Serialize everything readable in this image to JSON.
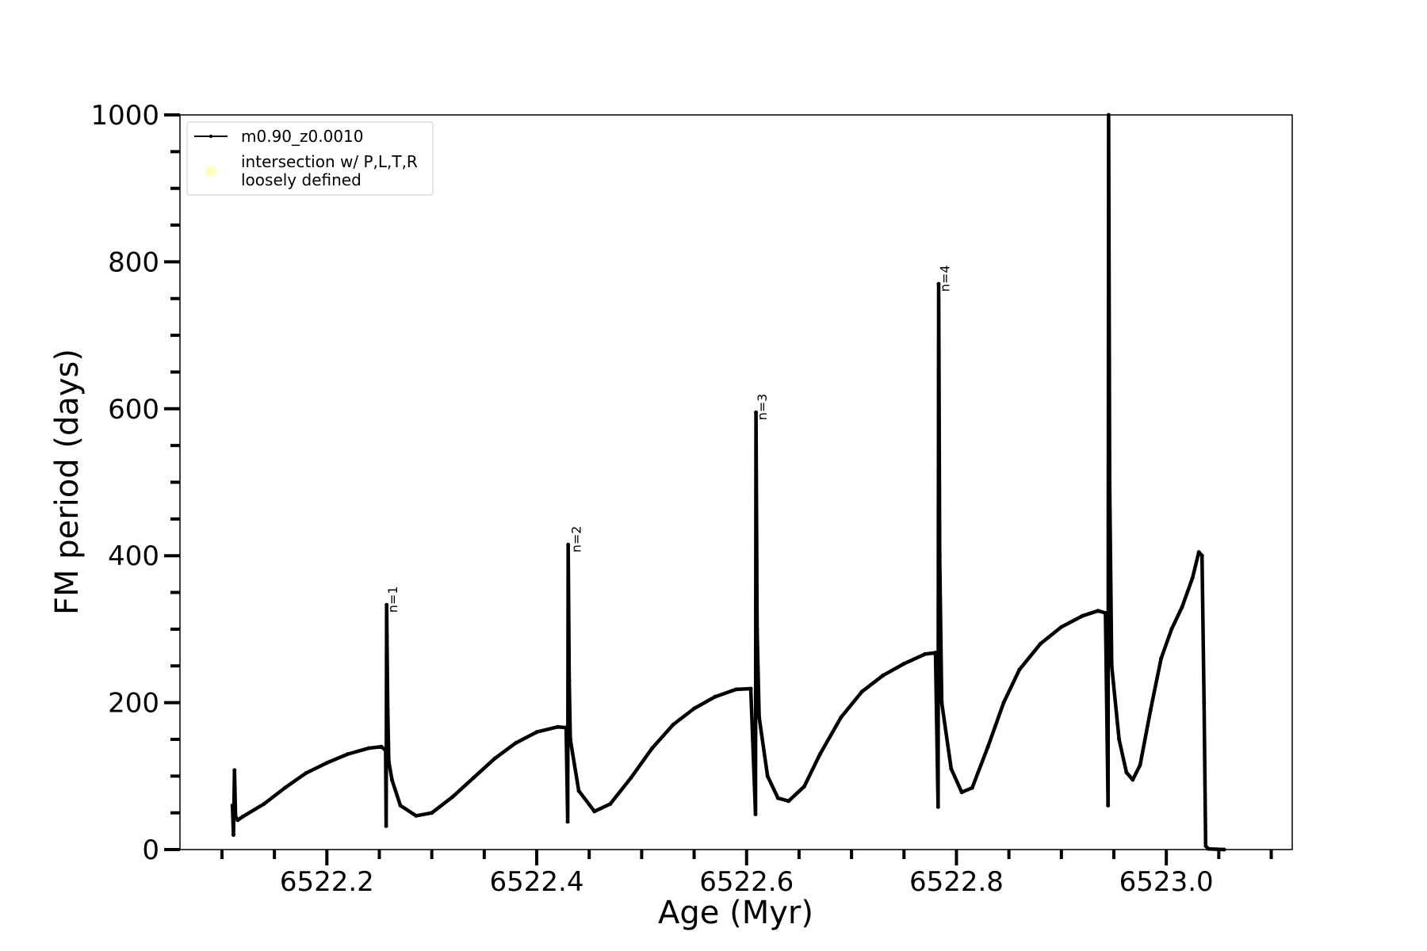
{
  "chart_data": {
    "type": "line",
    "xlabel": "Age (Myr)",
    "ylabel": "FM period (days)",
    "xlim": [
      6522.06,
      6523.12
    ],
    "ylim": [
      0,
      1000
    ],
    "xticks": [
      6522.2,
      6522.4,
      6522.6,
      6522.8,
      6523.0
    ],
    "xtick_labels": [
      "6522.2",
      "6522.4",
      "6522.6",
      "6522.8",
      "6523.0"
    ],
    "yticks": [
      0,
      200,
      400,
      600,
      800,
      1000
    ],
    "ytick_labels": [
      "0",
      "200",
      "400",
      "600",
      "800",
      "1000"
    ],
    "grid": false,
    "legend_position": "upper-left",
    "legend": [
      {
        "label": "m0.90_z0.0010",
        "marker": "line-dot",
        "color": "#000000"
      },
      {
        "label": "intersection w/ P,L,T,R",
        "label2": "loosely defined",
        "marker": "circle",
        "color": "#ffffc0"
      }
    ],
    "annotations": [
      {
        "text": "n=1",
        "x": 6522.258,
        "y": 333
      },
      {
        "text": "n=2",
        "x": 6522.433,
        "y": 415
      },
      {
        "text": "n=3",
        "x": 6522.61,
        "y": 595
      },
      {
        "text": "n=4",
        "x": 6522.784,
        "y": 770
      }
    ],
    "series": [
      {
        "name": "m0.90_z0.0010",
        "color": "#000000",
        "points": [
          [
            6522.11,
            60
          ],
          [
            6522.111,
            20
          ],
          [
            6522.112,
            108
          ],
          [
            6522.113,
            45
          ],
          [
            6522.115,
            40
          ],
          [
            6522.12,
            45
          ],
          [
            6522.14,
            62
          ],
          [
            6522.16,
            84
          ],
          [
            6522.18,
            104
          ],
          [
            6522.2,
            118
          ],
          [
            6522.22,
            130
          ],
          [
            6522.24,
            138
          ],
          [
            6522.252,
            140
          ],
          [
            6522.256,
            135
          ],
          [
            6522.2565,
            32
          ],
          [
            6522.257,
            333
          ],
          [
            6522.258,
            190
          ],
          [
            6522.259,
            120
          ],
          [
            6522.262,
            95
          ],
          [
            6522.27,
            60
          ],
          [
            6522.285,
            46
          ],
          [
            6522.3,
            50
          ],
          [
            6522.32,
            72
          ],
          [
            6522.34,
            98
          ],
          [
            6522.36,
            124
          ],
          [
            6522.38,
            145
          ],
          [
            6522.4,
            160
          ],
          [
            6522.42,
            167
          ],
          [
            6522.428,
            166
          ],
          [
            6522.4295,
            38
          ],
          [
            6522.43,
            415
          ],
          [
            6522.431,
            230
          ],
          [
            6522.432,
            150
          ],
          [
            6522.44,
            80
          ],
          [
            6522.455,
            52
          ],
          [
            6522.47,
            62
          ],
          [
            6522.49,
            98
          ],
          [
            6522.51,
            138
          ],
          [
            6522.53,
            170
          ],
          [
            6522.55,
            192
          ],
          [
            6522.57,
            208
          ],
          [
            6522.59,
            218
          ],
          [
            6522.604,
            219
          ],
          [
            6522.6085,
            48
          ],
          [
            6522.609,
            595
          ],
          [
            6522.61,
            300
          ],
          [
            6522.612,
            180
          ],
          [
            6522.62,
            100
          ],
          [
            6522.63,
            70
          ],
          [
            6522.64,
            66
          ],
          [
            6522.655,
            86
          ],
          [
            6522.67,
            130
          ],
          [
            6522.69,
            180
          ],
          [
            6522.71,
            215
          ],
          [
            6522.73,
            237
          ],
          [
            6522.75,
            253
          ],
          [
            6522.77,
            266
          ],
          [
            6522.78,
            268
          ],
          [
            6522.7825,
            58
          ],
          [
            6522.783,
            770
          ],
          [
            6522.784,
            400
          ],
          [
            6522.786,
            200
          ],
          [
            6522.795,
            110
          ],
          [
            6522.805,
            78
          ],
          [
            6522.815,
            84
          ],
          [
            6522.83,
            140
          ],
          [
            6522.845,
            200
          ],
          [
            6522.86,
            245
          ],
          [
            6522.88,
            280
          ],
          [
            6522.9,
            303
          ],
          [
            6522.92,
            318
          ],
          [
            6522.935,
            325
          ],
          [
            6522.942,
            322
          ],
          [
            6522.9445,
            60
          ],
          [
            6522.945,
            1000
          ],
          [
            6522.946,
            500
          ],
          [
            6522.948,
            250
          ],
          [
            6522.955,
            150
          ],
          [
            6522.962,
            105
          ],
          [
            6522.968,
            95
          ],
          [
            6522.975,
            115
          ],
          [
            6522.985,
            190
          ],
          [
            6522.995,
            260
          ],
          [
            6523.005,
            300
          ],
          [
            6523.015,
            330
          ],
          [
            6523.025,
            370
          ],
          [
            6523.031,
            405
          ],
          [
            6523.034,
            400
          ],
          [
            6523.036,
            200
          ],
          [
            6523.0375,
            5
          ],
          [
            6523.04,
            1
          ],
          [
            6523.055,
            0
          ]
        ]
      }
    ]
  }
}
